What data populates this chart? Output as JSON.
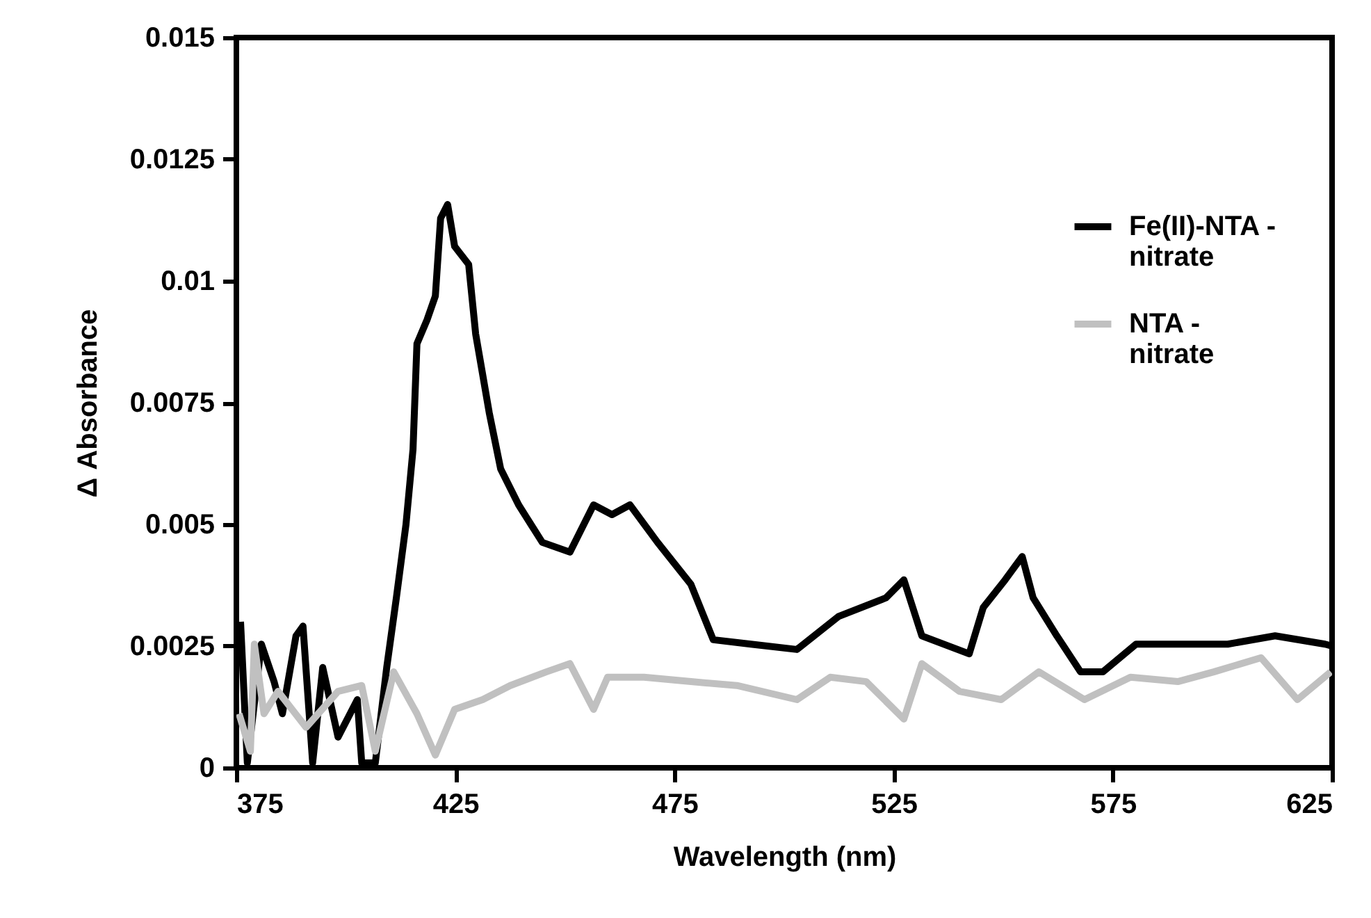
{
  "chart_data": {
    "type": "line",
    "xlabel": "Wavelength (nm)",
    "ylabel": "Δ Absorbance",
    "xlim": [
      375,
      625
    ],
    "xticks": [
      375,
      425,
      475,
      525,
      575,
      625
    ],
    "ylim": [
      0,
      0.015
    ],
    "yticks": [
      0,
      0.0025,
      0.005,
      0.0075,
      0.01,
      0.0125,
      0.015
    ],
    "grid": false,
    "legend": "right",
    "marker": "none",
    "line_style": "solid",
    "series": [
      {
        "name": "Fe(II)-NTA - nitrate",
        "color": "#000000",
        "x": [
          375.95,
          377.5,
          380.7,
          383.6,
          385.5,
          388.6,
          390.2,
          392.4,
          394.7,
          398.2,
          402.6,
          403.6,
          406.7,
          409.3,
          411.5,
          413.7,
          415.3,
          416.2,
          418.5,
          420.4,
          421.6,
          423.2,
          424.8,
          428.0,
          429.6,
          432.7,
          435.3,
          439.4,
          444.8,
          451.1,
          456.5,
          460.7,
          464.8,
          471.1,
          478.7,
          483.8,
          492.4,
          502.9,
          512.4,
          523.2,
          527.3,
          531.4,
          542.2,
          545.4,
          550.4,
          554.3,
          556.8,
          562.2,
          567.6,
          572.7,
          580.3,
          590.7,
          601.2,
          612.0,
          623.4,
          625
        ],
        "values": [
          0.003,
          0.0001,
          0.00254,
          0.00177,
          0.00111,
          0.00271,
          0.00291,
          0.0001,
          0.00206,
          0.00063,
          0.0014,
          0.0001,
          0.0001,
          0.00206,
          0.00349,
          0.005,
          0.00654,
          0.00871,
          0.0092,
          0.00969,
          0.01129,
          0.01157,
          0.01071,
          0.01034,
          0.00891,
          0.00729,
          0.00614,
          0.0054,
          0.00463,
          0.00443,
          0.0054,
          0.0052,
          0.0054,
          0.00463,
          0.00377,
          0.00263,
          0.00254,
          0.00243,
          0.00311,
          0.00349,
          0.00386,
          0.00271,
          0.00234,
          0.00329,
          0.00386,
          0.00434,
          0.00349,
          0.00271,
          0.00197,
          0.00197,
          0.00254,
          0.00254,
          0.00254,
          0.00271,
          0.00254,
          0.0025
        ]
      },
      {
        "name": "NTA - nitrate",
        "color": "#c0c0c0",
        "x": [
          375.6,
          378.2,
          379.1,
          381.3,
          384.5,
          390.9,
          398.2,
          403.6,
          406.7,
          410.9,
          416.2,
          420.4,
          424.8,
          431.2,
          437.5,
          445.7,
          451.1,
          456.5,
          459.7,
          468.0,
          478.7,
          489.2,
          502.9,
          510.5,
          518.7,
          527.3,
          531.4,
          540.0,
          549.5,
          558.1,
          568.5,
          579.0,
          589.8,
          598.0,
          608.8,
          617.1,
          624.7
        ],
        "values": [
          0.00111,
          0.00034,
          0.00254,
          0.00111,
          0.00157,
          0.00083,
          0.00157,
          0.00169,
          0.00034,
          0.00197,
          0.00111,
          0.00026,
          0.0012,
          0.0014,
          0.00169,
          0.00197,
          0.00214,
          0.0012,
          0.00186,
          0.00186,
          0.00177,
          0.00169,
          0.0014,
          0.00186,
          0.00177,
          0.001,
          0.00214,
          0.00157,
          0.0014,
          0.00197,
          0.0014,
          0.00186,
          0.00177,
          0.00197,
          0.00226,
          0.0014,
          0.00197
        ]
      }
    ]
  }
}
